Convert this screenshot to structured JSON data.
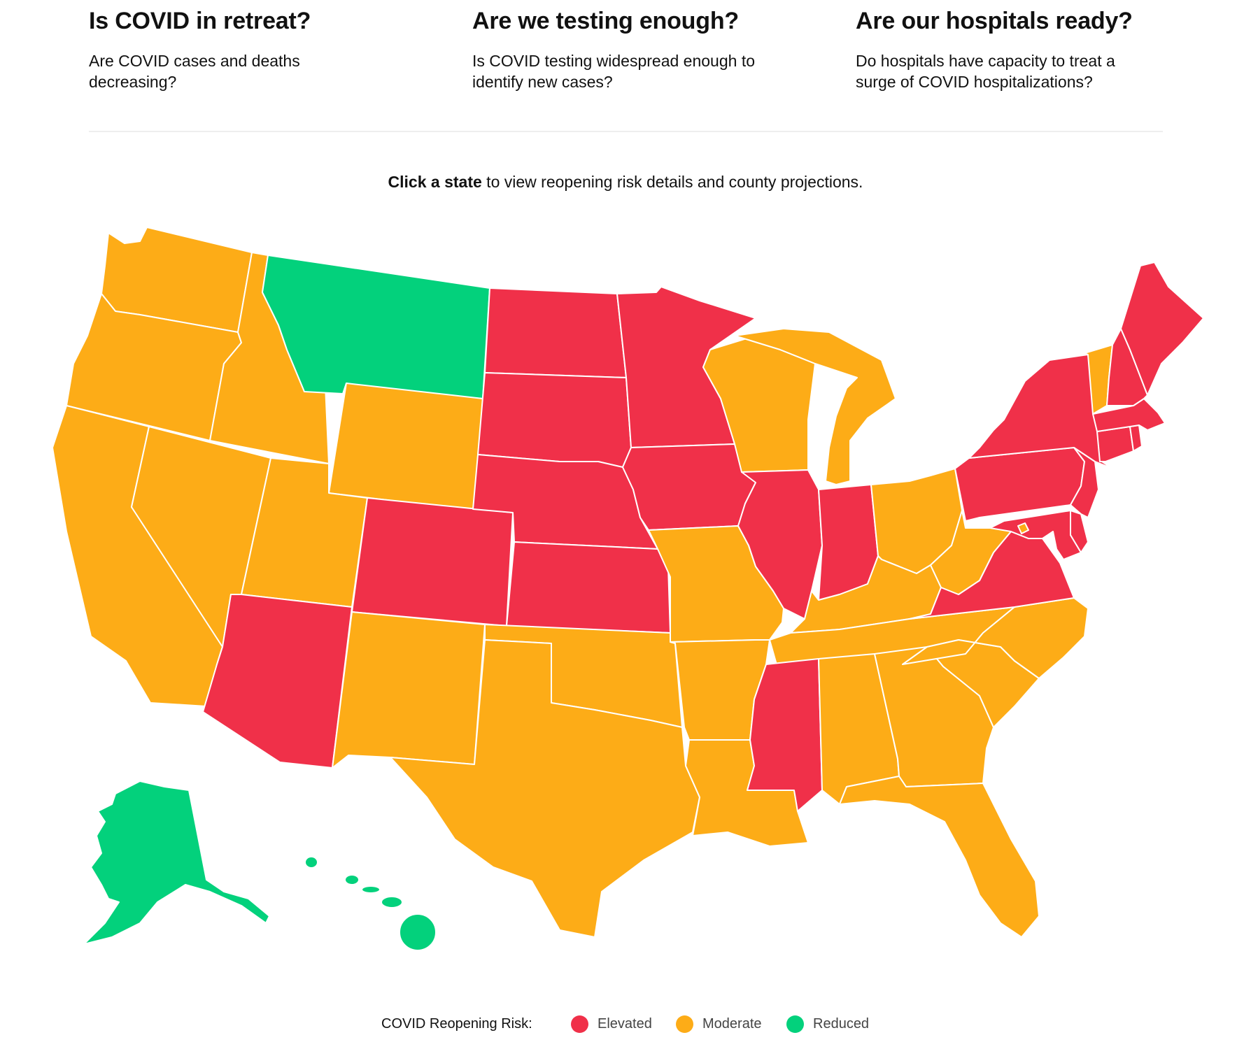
{
  "questions": [
    {
      "title": "Is COVID in retreat?",
      "subtitle": "Are COVID cases and deaths decreasing?"
    },
    {
      "title": "Are we testing enough?",
      "subtitle": "Is COVID testing widespread enough to identify new cases?"
    },
    {
      "title": "Are our hospitals ready?",
      "subtitle": "Do hospitals have capacity to treat a surge of COVID hospitalizations?"
    }
  ],
  "instruction": {
    "bold": "Click a state",
    "rest": " to view reopening risk details and county projections."
  },
  "legend": {
    "title": "COVID Reopening Risk:",
    "levels": [
      {
        "key": "elevated",
        "label": "Elevated",
        "color": "#f03049"
      },
      {
        "key": "moderate",
        "label": "Moderate",
        "color": "#fdac17"
      },
      {
        "key": "reduced",
        "label": "Reduced",
        "color": "#03d17c"
      }
    ]
  },
  "map": {
    "state_risk": {
      "WA": "moderate",
      "OR": "moderate",
      "CA": "moderate",
      "ID": "moderate",
      "NV": "moderate",
      "MT": "reduced",
      "WY": "moderate",
      "UT": "moderate",
      "AZ": "elevated",
      "CO": "elevated",
      "NM": "moderate",
      "ND": "elevated",
      "SD": "elevated",
      "NE": "elevated",
      "KS": "elevated",
      "OK": "moderate",
      "TX": "moderate",
      "MN": "elevated",
      "IA": "elevated",
      "MO": "moderate",
      "AR": "moderate",
      "LA": "moderate",
      "WI": "moderate",
      "IL": "elevated",
      "MI": "moderate",
      "IN": "elevated",
      "OH": "moderate",
      "KY": "moderate",
      "TN": "moderate",
      "MS": "elevated",
      "AL": "moderate",
      "GA": "moderate",
      "FL": "moderate",
      "SC": "moderate",
      "NC": "moderate",
      "VA": "elevated",
      "WV": "moderate",
      "PA": "elevated",
      "NY": "elevated",
      "NJ": "elevated",
      "DE": "elevated",
      "MD": "elevated",
      "DC": "moderate",
      "CT": "elevated",
      "RI": "elevated",
      "MA": "elevated",
      "VT": "moderate",
      "NH": "elevated",
      "ME": "elevated",
      "AK": "reduced",
      "HI": "reduced"
    }
  }
}
